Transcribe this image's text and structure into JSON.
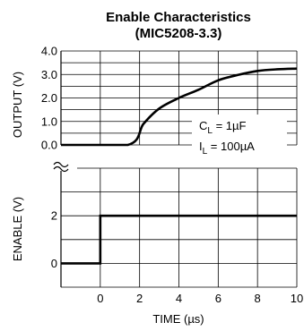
{
  "chart_data": [
    {
      "type": "line",
      "title": "Enable Characteristics",
      "subtitle": "(MIC5208-3.3)",
      "ylabel": "OUTPUT (V)",
      "ylim": [
        0,
        4
      ],
      "yticks": [
        "0.0",
        "1.0",
        "2.0",
        "3.0",
        "4.0"
      ],
      "xlim": [
        -2,
        10
      ],
      "grid": true,
      "series": [
        {
          "x": [
            -2,
            1.4,
            2.2,
            3,
            4,
            5,
            6,
            7,
            8,
            9,
            10
          ],
          "values": [
            0,
            0,
            0.9,
            1.55,
            2.0,
            2.35,
            2.75,
            2.98,
            3.15,
            3.22,
            3.25
          ]
        }
      ],
      "annotations": {
        "cap_prefix": "C",
        "cap_sub": "L",
        "cap_value": " = 1µF",
        "cur_prefix": "I",
        "cur_sub": "L",
        "cur_value": " = 100µA"
      }
    },
    {
      "type": "line",
      "ylabel": "ENABLE (V)",
      "ylim": [
        -1,
        4
      ],
      "yticks": [
        "0",
        "2"
      ],
      "xlabel": "TIME (µs)",
      "xlim": [
        -2,
        10
      ],
      "xticks": [
        "0",
        "2",
        "4",
        "6",
        "8",
        "10"
      ],
      "grid": true,
      "series": [
        {
          "x": [
            -2,
            0,
            0,
            10
          ],
          "values": [
            0,
            0,
            2,
            2
          ]
        }
      ]
    }
  ]
}
